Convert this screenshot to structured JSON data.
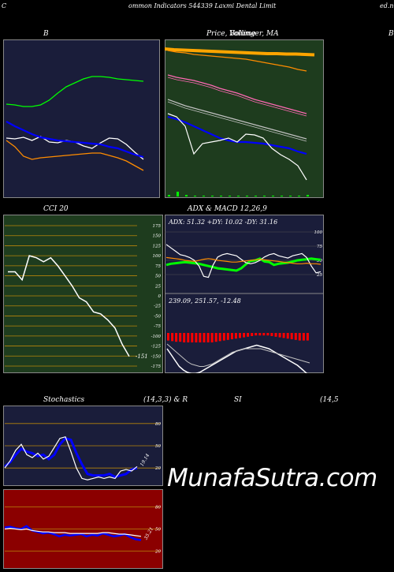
{
  "page": {
    "title_left": "C",
    "title_main": "ommon  Indicators 544339 Laxmi  Dental Limit",
    "title_right": "ed.n",
    "brand": "MunafaSutra.com"
  },
  "chart_data": [
    {
      "id": "bollinger",
      "type": "line",
      "title": "B",
      "title_right": "B",
      "bg": "#1a1d3a",
      "series": [
        {
          "color": "#00ff00",
          "values": [
            82,
            83,
            85,
            85,
            83,
            77,
            68,
            60,
            55,
            50,
            47,
            47,
            48,
            50,
            51,
            52,
            53
          ]
        },
        {
          "color": "#ffffff",
          "values": [
            125,
            126,
            124,
            128,
            123,
            130,
            131,
            128,
            130,
            135,
            138,
            131,
            125,
            126,
            133,
            143,
            152
          ]
        },
        {
          "color": "#0000ff",
          "values": [
            104,
            110,
            115,
            120,
            124,
            126,
            128,
            129,
            130,
            131,
            132,
            133,
            136,
            138,
            142,
            146,
            149
          ]
        },
        {
          "color": "#ff8c00",
          "values": [
            128,
            136,
            148,
            152,
            150,
            149,
            148,
            147,
            146,
            145,
            144,
            144,
            147,
            150,
            154,
            160,
            166
          ]
        }
      ]
    },
    {
      "id": "price-ma",
      "type": "line",
      "title": "Price,  Bollinger,  MA",
      "overlay": "Volume",
      "bg": "#1e3c1e",
      "series": [
        {
          "color": "#ff8c00",
          "values": [
            34,
            36,
            37,
            39,
            40,
            41,
            42,
            43,
            44,
            45,
            47,
            49,
            51,
            53,
            55,
            58,
            60
          ]
        },
        {
          "color": "#ff69b4",
          "values": [
            65,
            68,
            70,
            72,
            75,
            78,
            82,
            85,
            88,
            92,
            96,
            99,
            102,
            105,
            108,
            111,
            114
          ]
        },
        {
          "color": "#c0c0c0",
          "values": [
            96,
            100,
            104,
            107,
            110,
            113,
            116,
            119,
            122,
            125,
            128,
            131,
            134,
            137,
            140,
            143,
            146
          ]
        },
        {
          "color": "#0000ff",
          "values": [
            118,
            121,
            125,
            130,
            135,
            140,
            145,
            148,
            150,
            150,
            151,
            152,
            154,
            156,
            158,
            162,
            165
          ]
        },
        {
          "color": "#ffffff",
          "values": [
            114,
            118,
            130,
            165,
            152,
            150,
            148,
            145,
            150,
            140,
            141,
            145,
            158,
            166,
            172,
            180,
            198
          ]
        }
      ],
      "volume": [
        0.02,
        0.06,
        0.02,
        0.01,
        0.01,
        0.01,
        0.01,
        0.01,
        0.01,
        0.01,
        0.01,
        0.01,
        0.01,
        0.01,
        0.01,
        0.01,
        0.02
      ]
    },
    {
      "id": "cci",
      "type": "line",
      "title": "CCI 20",
      "bg": "#1e3c1e",
      "ylim": [
        -175,
        175
      ],
      "ticks": [
        "175",
        "150",
        "125",
        "100",
        "75",
        "50",
        "25",
        "0",
        "-25",
        "-50",
        "-75",
        "-100",
        "-125",
        "-150",
        "-175"
      ],
      "last_label": "-151",
      "values": [
        60,
        60,
        40,
        100,
        95,
        85,
        95,
        75,
        50,
        25,
        -5,
        -15,
        -40,
        -45,
        -60,
        -80,
        -120,
        -151
      ]
    },
    {
      "id": "adx-macd",
      "type": "line",
      "title": "ADX  & MACD 12,26,9",
      "adx_text": "ADX: 51.32  +DY: 10.02  -DY: 31.16",
      "macd_text": "239.09,  251.57,  -12.48",
      "bg": "#1a1d3a",
      "adx_ticks": [
        "100",
        "75",
        "50",
        "25"
      ],
      "adx_series": [
        {
          "color": "#00ff00",
          "values": [
            42,
            44,
            45,
            46,
            47,
            46,
            45,
            44,
            42,
            40,
            38,
            36,
            35,
            34,
            33,
            32,
            36,
            43,
            49,
            50,
            53,
            48,
            47,
            42,
            44,
            45,
            46,
            48,
            50,
            51,
            52,
            53,
            52,
            51
          ]
        },
        {
          "color": "#ffffff",
          "values": [
            78,
            72,
            66,
            60,
            58,
            55,
            50,
            40,
            22,
            20,
            42,
            56,
            60,
            62,
            60,
            58,
            52,
            46,
            44,
            46,
            50,
            56,
            60,
            62,
            58,
            56,
            54,
            58,
            60,
            62,
            55,
            40,
            28,
            30
          ]
        },
        {
          "color": "#ff8c00",
          "values": [
            55,
            54,
            53,
            52,
            50,
            49,
            48,
            50,
            52,
            53,
            52,
            50,
            49,
            48,
            47,
            47,
            48,
            49,
            50,
            51,
            52,
            51,
            50,
            49,
            48,
            47,
            46,
            45,
            44,
            44,
            45,
            44,
            44,
            43
          ]
        }
      ],
      "macd_hist": [
        -12,
        -13,
        -14,
        -14,
        -15,
        -15,
        -15,
        -15,
        -15,
        -15,
        -15,
        -15,
        -14,
        -13,
        -12,
        -11,
        -10,
        -9,
        -8,
        -7,
        -6,
        -5,
        -4,
        -4,
        -4,
        -4,
        -5,
        -6,
        -7,
        -8,
        -9,
        -10,
        -11,
        -12,
        -12,
        -12
      ],
      "macd_series": [
        {
          "color": "#ffffff",
          "values": [
            -10,
            -15,
            -20,
            -25,
            -28,
            -30,
            -31,
            -31,
            -30,
            -28,
            -26,
            -24,
            -22,
            -20,
            -18,
            -16,
            -14,
            -12,
            -11,
            -10,
            -9,
            -8,
            -7,
            -8,
            -9,
            -10,
            -12,
            -14,
            -16,
            -18,
            -20,
            -22,
            -24,
            -27,
            -30,
            -33
          ]
        },
        {
          "color": "#c0c0c0",
          "values": [
            -6,
            -9,
            -12,
            -15,
            -18,
            -21,
            -23,
            -24,
            -25,
            -25,
            -24,
            -23,
            -21,
            -19,
            -17,
            -15,
            -13,
            -12,
            -11,
            -10,
            -10,
            -10,
            -10,
            -10,
            -11,
            -12,
            -13,
            -14,
            -15,
            -16,
            -17,
            -18,
            -19,
            -20,
            -21,
            -22
          ]
        }
      ]
    },
    {
      "id": "stoch",
      "type": "line",
      "title": "Stochastics",
      "params": "(14,3,3) & R",
      "bg": "#1a1d3a",
      "ylim": [
        0,
        100
      ],
      "ticks": [
        "80",
        "50",
        "20"
      ],
      "last_label": "19.14",
      "series": [
        {
          "color": "#0000ff",
          "values": [
            22,
            28,
            38,
            46,
            42,
            40,
            36,
            38,
            32,
            38,
            52,
            60,
            58,
            40,
            25,
            12,
            10,
            10,
            10,
            12,
            8,
            10,
            12,
            18,
            20
          ]
        },
        {
          "color": "#ffffff",
          "values": [
            20,
            30,
            44,
            52,
            38,
            34,
            40,
            32,
            36,
            48,
            60,
            62,
            42,
            20,
            6,
            4,
            6,
            8,
            6,
            8,
            6,
            16,
            18,
            16,
            22
          ]
        }
      ]
    },
    {
      "id": "rsi",
      "type": "line",
      "title": "SI",
      "params": "(14,5",
      "bg": "#8b0000",
      "ylim": [
        0,
        100
      ],
      "ticks": [
        "80",
        "50",
        "20"
      ],
      "last_label": "35.21",
      "series": [
        {
          "color": "#0000ff",
          "values": [
            52,
            53,
            51,
            50,
            54,
            48,
            46,
            44,
            45,
            43,
            40,
            42,
            41,
            42,
            43,
            40,
            42,
            41,
            44,
            42,
            40,
            41,
            43,
            39,
            36,
            35
          ]
        },
        {
          "color": "#ffffff",
          "values": [
            50,
            51,
            50,
            49,
            50,
            48,
            47,
            46,
            46,
            45,
            45,
            45,
            44,
            44,
            44,
            44,
            44,
            44,
            45,
            45,
            44,
            43,
            43,
            42,
            41,
            40
          ]
        }
      ]
    }
  ]
}
